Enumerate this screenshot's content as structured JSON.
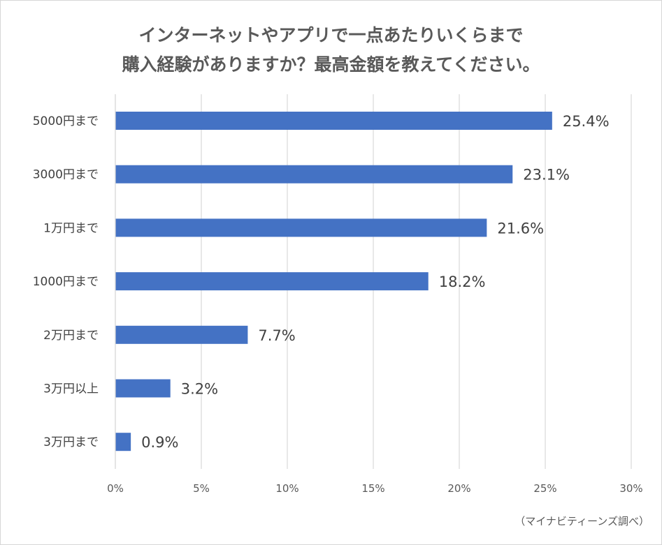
{
  "chart_data": {
    "type": "bar",
    "orientation": "horizontal",
    "title_lines": [
      "インターネットやアプリで一点あたりいくらまで",
      "購入経験がありますか？最高金額を教えてください。"
    ],
    "categories": [
      "5000円まで",
      "3000円まで",
      "1万円まで",
      "1000円まで",
      "2万円まで",
      "3万円以上",
      "3万円まで"
    ],
    "values": [
      25.4,
      23.1,
      21.6,
      18.2,
      7.7,
      3.2,
      0.9
    ],
    "value_labels": [
      "25.4%",
      "23.1%",
      "21.6%",
      "18.2%",
      "7.7%",
      "3.2%",
      "0.9%"
    ],
    "xlim": [
      0,
      30
    ],
    "x_ticks": [
      0,
      5,
      10,
      15,
      20,
      25,
      30
    ],
    "x_tick_labels": [
      "0%",
      "5%",
      "10%",
      "15%",
      "20%",
      "25%",
      "30%"
    ],
    "grid": true,
    "bar_color": "#4472c4",
    "grid_color": "#d9d9d9",
    "text_color": "#595959",
    "label_color": "#404040"
  },
  "source_note": "（マイナビティーンズ調べ）"
}
